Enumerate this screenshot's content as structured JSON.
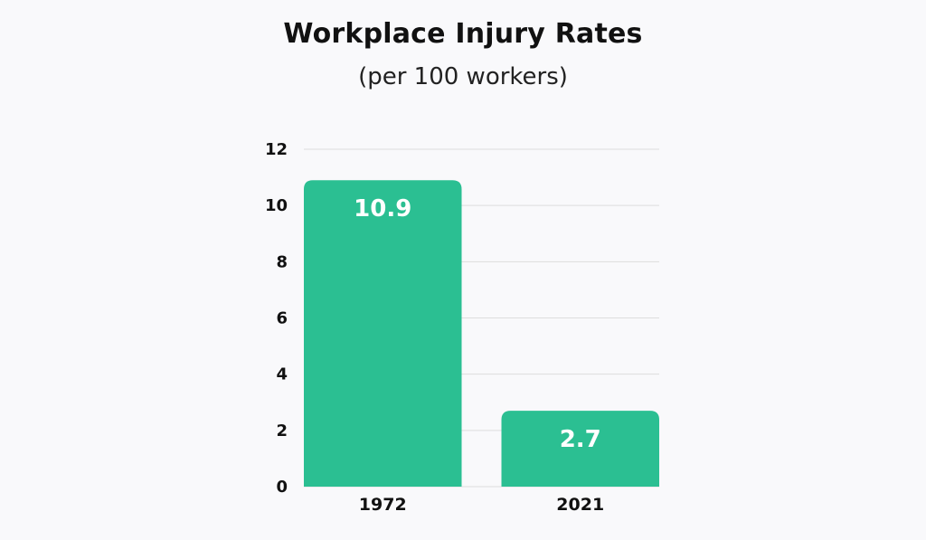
{
  "chart_data": {
    "type": "bar",
    "title": "Workplace Injury Rates",
    "subtitle": "(per 100 workers)",
    "categories": [
      "1972",
      "2021"
    ],
    "values": [
      10.9,
      2.7
    ],
    "data_labels": [
      "10.9",
      "2.7"
    ],
    "ylim": [
      0,
      12
    ],
    "yticks": [
      0,
      2,
      4,
      6,
      8,
      10,
      12
    ],
    "grid": true,
    "bar_color": "#2bbf92",
    "grid_color": "#dddddd",
    "background": "#f9f9fb"
  }
}
